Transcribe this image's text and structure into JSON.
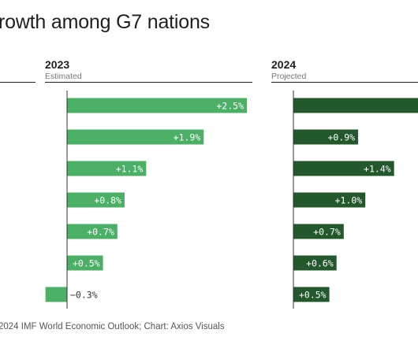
{
  "header": {
    "title": "rowth among G7 nations"
  },
  "columns": [
    {
      "year": "2023",
      "sublabel": "Estimated"
    },
    {
      "year": "2024",
      "sublabel": "Projected"
    }
  ],
  "colors": {
    "bar_2023": "#4caf66",
    "bar_2024": "#22582b",
    "axis": "#333333",
    "label_inside": "#ffffff",
    "label_outside": "#333333"
  },
  "chart_data": {
    "type": "bar",
    "orientation": "horizontal",
    "series": [
      {
        "values": [
          2.5,
          1.9,
          1.1,
          0.8,
          0.7,
          0.5,
          -0.3
        ],
        "labels": [
          "+2.5%",
          "+1.9%",
          "+1.1%",
          "+0.8%",
          "+0.7%",
          "+0.5%",
          "−0.3%"
        ]
      },
      {
        "values": [
          2.7,
          0.9,
          1.4,
          1.0,
          0.7,
          0.6,
          0.5
        ],
        "labels": [
          "+",
          "+0.9%",
          "+1.4%",
          "+1.0%",
          "+0.7%",
          "+0.6%",
          "+0.5%"
        ]
      }
    ]
  },
  "footer": {
    "source": "2024 IMF World Economic Outlook; Chart: Axios Visuals"
  }
}
